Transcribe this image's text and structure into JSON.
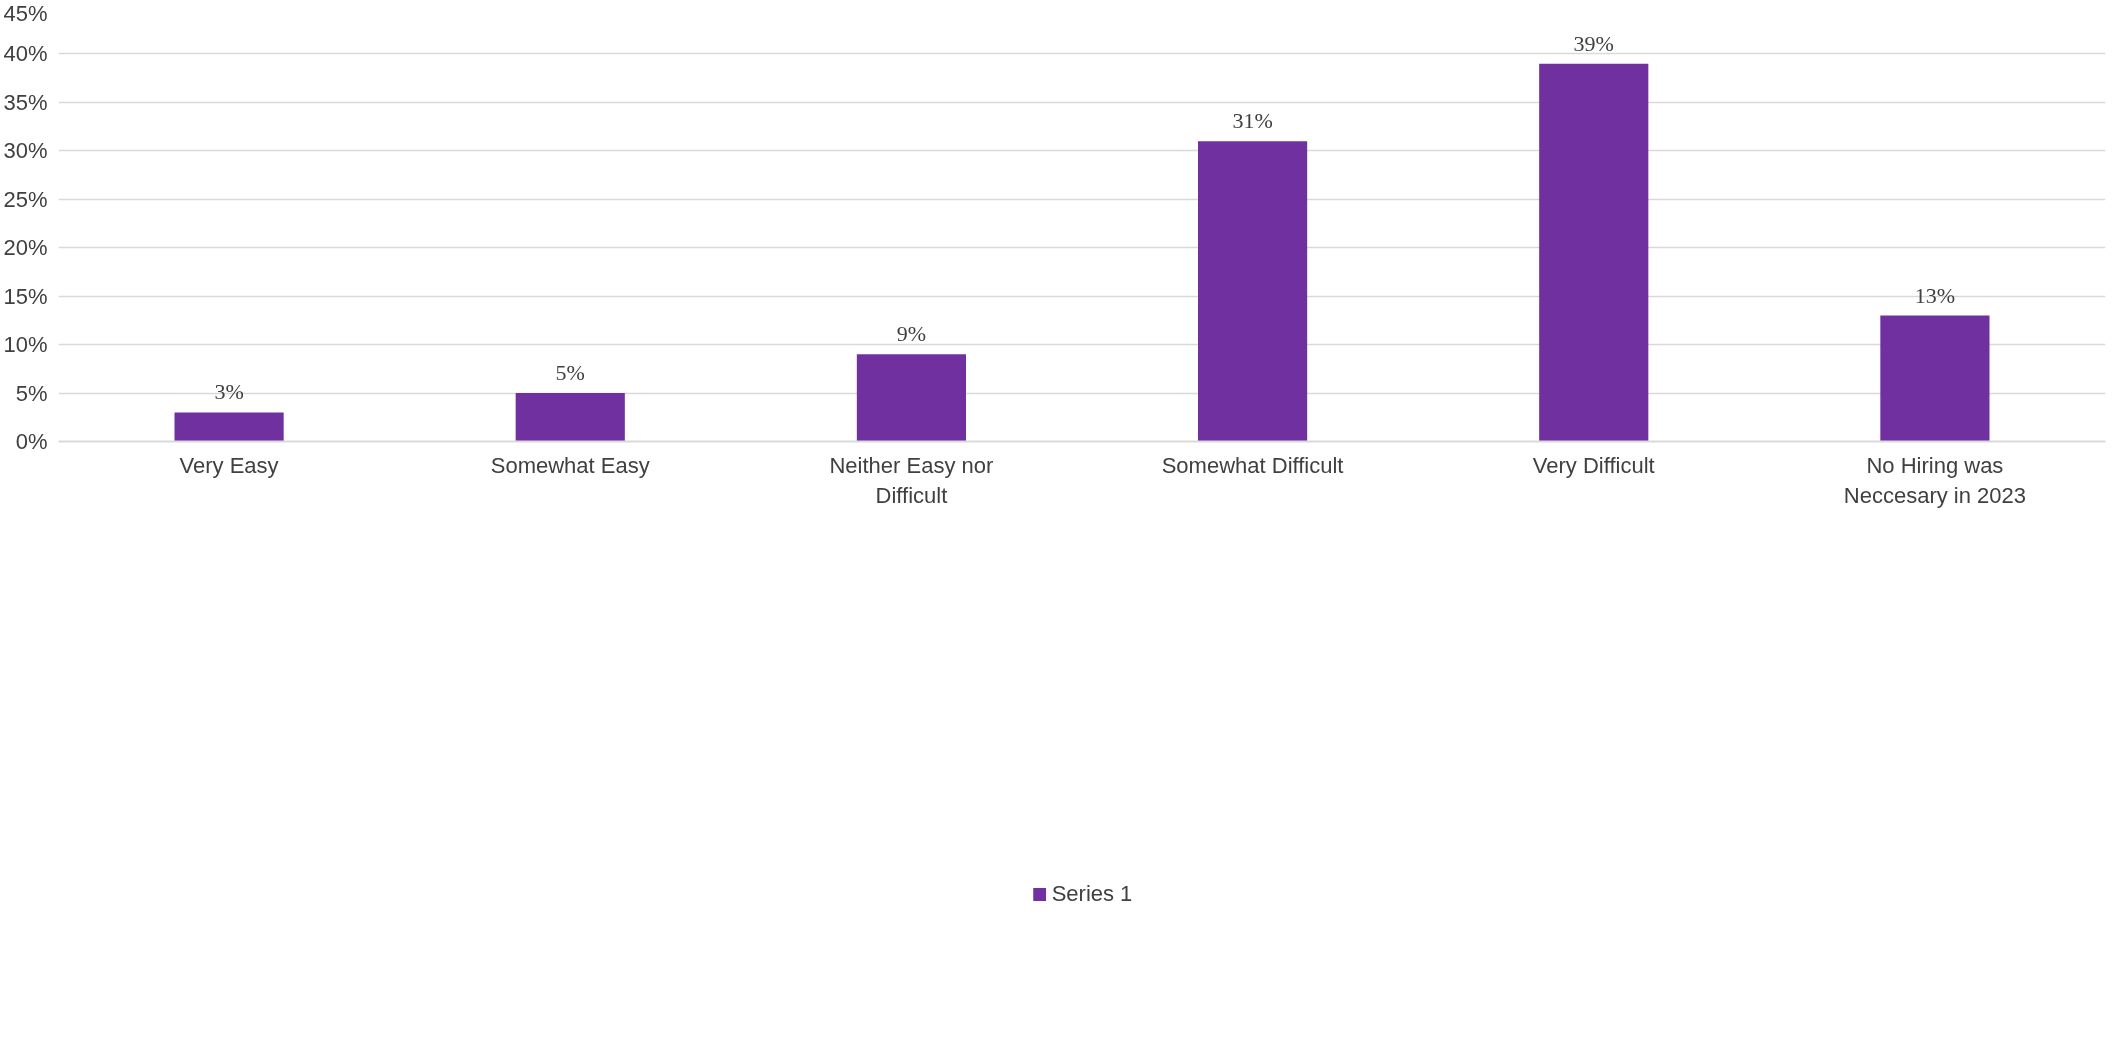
{
  "chart_data": {
    "type": "bar",
    "categories": [
      "Very Easy",
      "Somewhat Easy",
      "Neither Easy nor Difficult",
      "Somewhat Difficult",
      "Very Difficult",
      "No Hiring was Neccesary in 2023"
    ],
    "series": [
      {
        "name": "Series 1",
        "color": "#7030a0",
        "values": [
          3,
          5,
          9,
          31,
          39,
          13
        ],
        "value_labels": [
          "3%",
          "5%",
          "9%",
          "31%",
          "39%",
          "13%"
        ]
      }
    ],
    "ylim": [
      0,
      45
    ],
    "yticks": [
      {
        "value": 0,
        "label": "0%"
      },
      {
        "value": 5,
        "label": "5%"
      },
      {
        "value": 10,
        "label": "10%"
      },
      {
        "value": 15,
        "label": "15%"
      },
      {
        "value": 20,
        "label": "20%"
      },
      {
        "value": 25,
        "label": "25%"
      },
      {
        "value": 30,
        "label": "30%"
      },
      {
        "value": 35,
        "label": "35%"
      },
      {
        "value": 40,
        "label": "40%"
      },
      {
        "value": 45,
        "label": "45%"
      }
    ],
    "grid": "y",
    "legend": "bottom"
  }
}
